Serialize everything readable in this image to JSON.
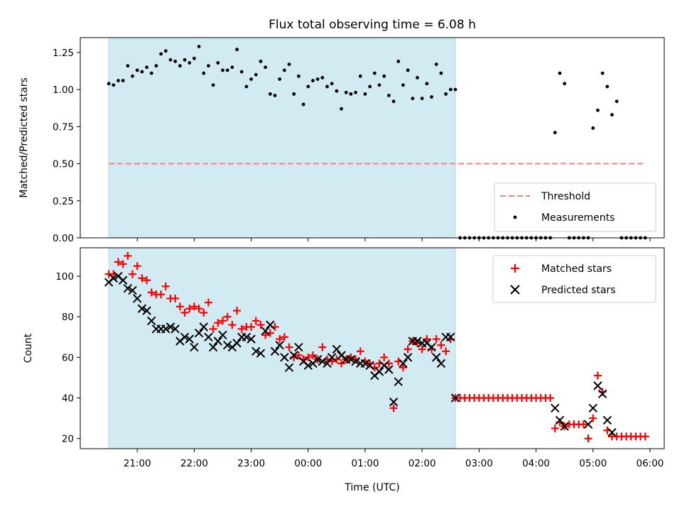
{
  "title": "Flux total observing time = 6.08 h",
  "colors": {
    "shade": "#add8e6",
    "threshold": "#ff7f7f",
    "matched": "#ff0000",
    "predicted": "#000000",
    "measurements": "#000000"
  },
  "chart_data": [
    {
      "type": "scatter",
      "panel": "top",
      "ylabel": "Matched/Predicted stars",
      "ylim": [
        0,
        1.35
      ],
      "yticks": [
        0,
        0.25,
        0.5,
        0.75,
        1.0,
        1.25
      ],
      "ytick_labels": [
        "0.00",
        "0.25",
        "0.50",
        "0.75",
        "1.00",
        "1.25"
      ],
      "shaded_span": [
        "20:30",
        "02:35"
      ],
      "threshold": {
        "name": "Threshold",
        "value": 0.5,
        "x_range": [
          "20:30",
          "05:55"
        ],
        "style": "dashed"
      },
      "legend": {
        "position": "lower-right",
        "entries": [
          "Threshold",
          "Measurements"
        ]
      },
      "series": [
        {
          "name": "Measurements",
          "x": [
            "20:30",
            "20:35",
            "20:40",
            "20:45",
            "20:50",
            "20:55",
            "21:00",
            "21:05",
            "21:10",
            "21:15",
            "21:20",
            "21:25",
            "21:30",
            "21:35",
            "21:40",
            "21:45",
            "21:50",
            "21:55",
            "22:00",
            "22:05",
            "22:10",
            "22:15",
            "22:20",
            "22:25",
            "22:30",
            "22:35",
            "22:40",
            "22:45",
            "22:50",
            "22:55",
            "23:00",
            "23:05",
            "23:10",
            "23:15",
            "23:20",
            "23:25",
            "23:30",
            "23:35",
            "23:40",
            "23:45",
            "23:50",
            "23:55",
            "00:00",
            "00:05",
            "00:10",
            "00:15",
            "00:20",
            "00:25",
            "00:30",
            "00:35",
            "00:40",
            "00:45",
            "00:50",
            "00:55",
            "01:00",
            "01:05",
            "01:10",
            "01:15",
            "01:20",
            "01:25",
            "01:30",
            "01:35",
            "01:40",
            "01:45",
            "01:50",
            "01:55",
            "02:00",
            "02:05",
            "02:10",
            "02:15",
            "02:20",
            "02:25",
            "02:30",
            "02:35",
            "02:40",
            "02:45",
            "02:50",
            "02:55",
            "03:00",
            "03:05",
            "03:10",
            "03:15",
            "03:20",
            "03:25",
            "03:30",
            "03:35",
            "03:40",
            "03:45",
            "03:50",
            "03:55",
            "04:00",
            "04:05",
            "04:10",
            "04:15",
            "04:20",
            "04:25",
            "04:30",
            "04:35",
            "04:40",
            "04:45",
            "04:50",
            "04:55",
            "05:00",
            "05:05",
            "05:10",
            "05:15",
            "05:20",
            "05:25",
            "05:30",
            "05:35",
            "05:40",
            "05:45",
            "05:50",
            "05:55"
          ],
          "y": [
            1.04,
            1.03,
            1.06,
            1.06,
            1.16,
            1.09,
            1.13,
            1.12,
            1.15,
            1.11,
            1.16,
            1.24,
            1.26,
            1.2,
            1.19,
            1.16,
            1.2,
            1.18,
            1.21,
            1.29,
            1.11,
            1.16,
            1.03,
            1.18,
            1.13,
            1.13,
            1.15,
            1.27,
            1.12,
            1.02,
            1.07,
            1.1,
            1.19,
            1.15,
            0.97,
            0.96,
            1.07,
            1.13,
            1.17,
            0.97,
            1.09,
            0.9,
            1.02,
            1.06,
            1.07,
            1.08,
            1.02,
            1.04,
            0.99,
            0.87,
            0.98,
            0.97,
            0.98,
            1.09,
            0.97,
            1.02,
            1.11,
            1.03,
            1.09,
            0.96,
            0.92,
            1.19,
            1.03,
            1.13,
            0.94,
            1.08,
            0.94,
            1.04,
            0.95,
            1.17,
            1.11,
            0.97,
            1.0,
            1.0,
            0,
            0,
            0,
            0,
            0,
            0,
            0,
            0,
            0,
            0,
            0,
            0,
            0,
            0,
            0,
            0,
            0,
            0,
            0,
            0,
            0.71,
            1.11,
            1.04,
            0,
            0,
            0,
            0,
            0,
            0.74,
            0.86,
            1.11,
            1.02,
            0.83,
            0.92,
            0,
            0,
            0,
            0,
            0,
            0
          ]
        }
      ]
    },
    {
      "type": "scatter",
      "panel": "bottom",
      "xlabel": "Time (UTC)",
      "ylabel": "Count",
      "ylim": [
        15,
        114
      ],
      "yticks": [
        20,
        40,
        60,
        80,
        100
      ],
      "xticks": [
        "21:00",
        "22:00",
        "23:00",
        "00:00",
        "01:00",
        "02:00",
        "03:00",
        "04:00",
        "05:00",
        "06:00"
      ],
      "xlim": [
        "20:00",
        "06:15"
      ],
      "shaded_span": [
        "20:30",
        "02:35"
      ],
      "legend": {
        "position": "upper-right",
        "entries": [
          "Matched stars",
          "Predicted stars"
        ]
      },
      "x": [
        "20:30",
        "20:35",
        "20:40",
        "20:45",
        "20:50",
        "20:55",
        "21:00",
        "21:05",
        "21:10",
        "21:15",
        "21:20",
        "21:25",
        "21:30",
        "21:35",
        "21:40",
        "21:45",
        "21:50",
        "21:55",
        "22:00",
        "22:05",
        "22:10",
        "22:15",
        "22:20",
        "22:25",
        "22:30",
        "22:35",
        "22:40",
        "22:45",
        "22:50",
        "22:55",
        "23:00",
        "23:05",
        "23:10",
        "23:15",
        "23:20",
        "23:25",
        "23:30",
        "23:35",
        "23:40",
        "23:45",
        "23:50",
        "23:55",
        "00:00",
        "00:05",
        "00:10",
        "00:15",
        "00:20",
        "00:25",
        "00:30",
        "00:35",
        "00:40",
        "00:45",
        "00:50",
        "00:55",
        "01:00",
        "01:05",
        "01:10",
        "01:15",
        "01:20",
        "01:25",
        "01:30",
        "01:35",
        "01:40",
        "01:45",
        "01:50",
        "01:55",
        "02:00",
        "02:05",
        "02:10",
        "02:15",
        "02:20",
        "02:25",
        "02:30",
        "02:35",
        "02:40",
        "02:45",
        "02:50",
        "02:55",
        "03:00",
        "03:05",
        "03:10",
        "03:15",
        "03:20",
        "03:25",
        "03:30",
        "03:35",
        "03:40",
        "03:45",
        "03:50",
        "03:55",
        "04:00",
        "04:05",
        "04:10",
        "04:15",
        "04:20",
        "04:25",
        "04:30",
        "04:35",
        "04:40",
        "04:45",
        "04:50",
        "04:55",
        "05:00",
        "05:05",
        "05:10",
        "05:15",
        "05:20",
        "05:25",
        "05:30",
        "05:35",
        "05:40",
        "05:45",
        "05:50",
        "05:55"
      ],
      "series": [
        {
          "name": "Matched stars",
          "marker": "+",
          "values": [
            101,
            101,
            107,
            106,
            110,
            101,
            105,
            99,
            98,
            92,
            91,
            91,
            95,
            89,
            89,
            85,
            82,
            84,
            85,
            84,
            82,
            87,
            74,
            77,
            78,
            80,
            76,
            83,
            74,
            75,
            75,
            78,
            76,
            71,
            72,
            75,
            69,
            70,
            65,
            60,
            61,
            59,
            60,
            61,
            59,
            65,
            59,
            58,
            59,
            57,
            59,
            60,
            59,
            63,
            58,
            57,
            55,
            57,
            60,
            57,
            35,
            58,
            55,
            64,
            68,
            67,
            64,
            69,
            64,
            69,
            66,
            63,
            69,
            40,
            40,
            40,
            40,
            40,
            40,
            40,
            40,
            40,
            40,
            40,
            40,
            40,
            40,
            40,
            40,
            40,
            40,
            40,
            40,
            40,
            25,
            28,
            26,
            27,
            27,
            27,
            27,
            20,
            30,
            51,
            43,
            24,
            21,
            21,
            21,
            21,
            21,
            21,
            21,
            21
          ]
        },
        {
          "name": "Predicted stars",
          "marker": "x",
          "values": [
            97,
            99,
            100,
            98,
            94,
            93,
            89,
            84,
            83,
            78,
            74,
            74,
            74,
            75,
            74,
            68,
            70,
            69,
            65,
            72,
            75,
            70,
            65,
            68,
            71,
            66,
            65,
            67,
            70,
            70,
            69,
            63,
            62,
            73,
            76,
            63,
            66,
            60,
            55,
            61,
            65,
            58,
            56,
            57,
            59,
            58,
            57,
            60,
            64,
            61,
            59,
            59,
            58,
            57,
            57,
            56,
            51,
            53,
            56,
            54,
            38,
            48,
            57,
            60,
            68,
            68,
            67,
            67,
            65,
            60,
            57,
            70,
            70,
            40,
            null,
            null,
            null,
            null,
            null,
            null,
            null,
            null,
            null,
            null,
            null,
            null,
            null,
            null,
            null,
            null,
            null,
            null,
            null,
            null,
            35,
            29,
            26,
            null,
            null,
            null,
            null,
            27,
            35,
            46,
            42,
            29,
            23,
            null,
            null,
            null,
            null,
            null,
            null,
            null
          ]
        }
      ]
    }
  ]
}
